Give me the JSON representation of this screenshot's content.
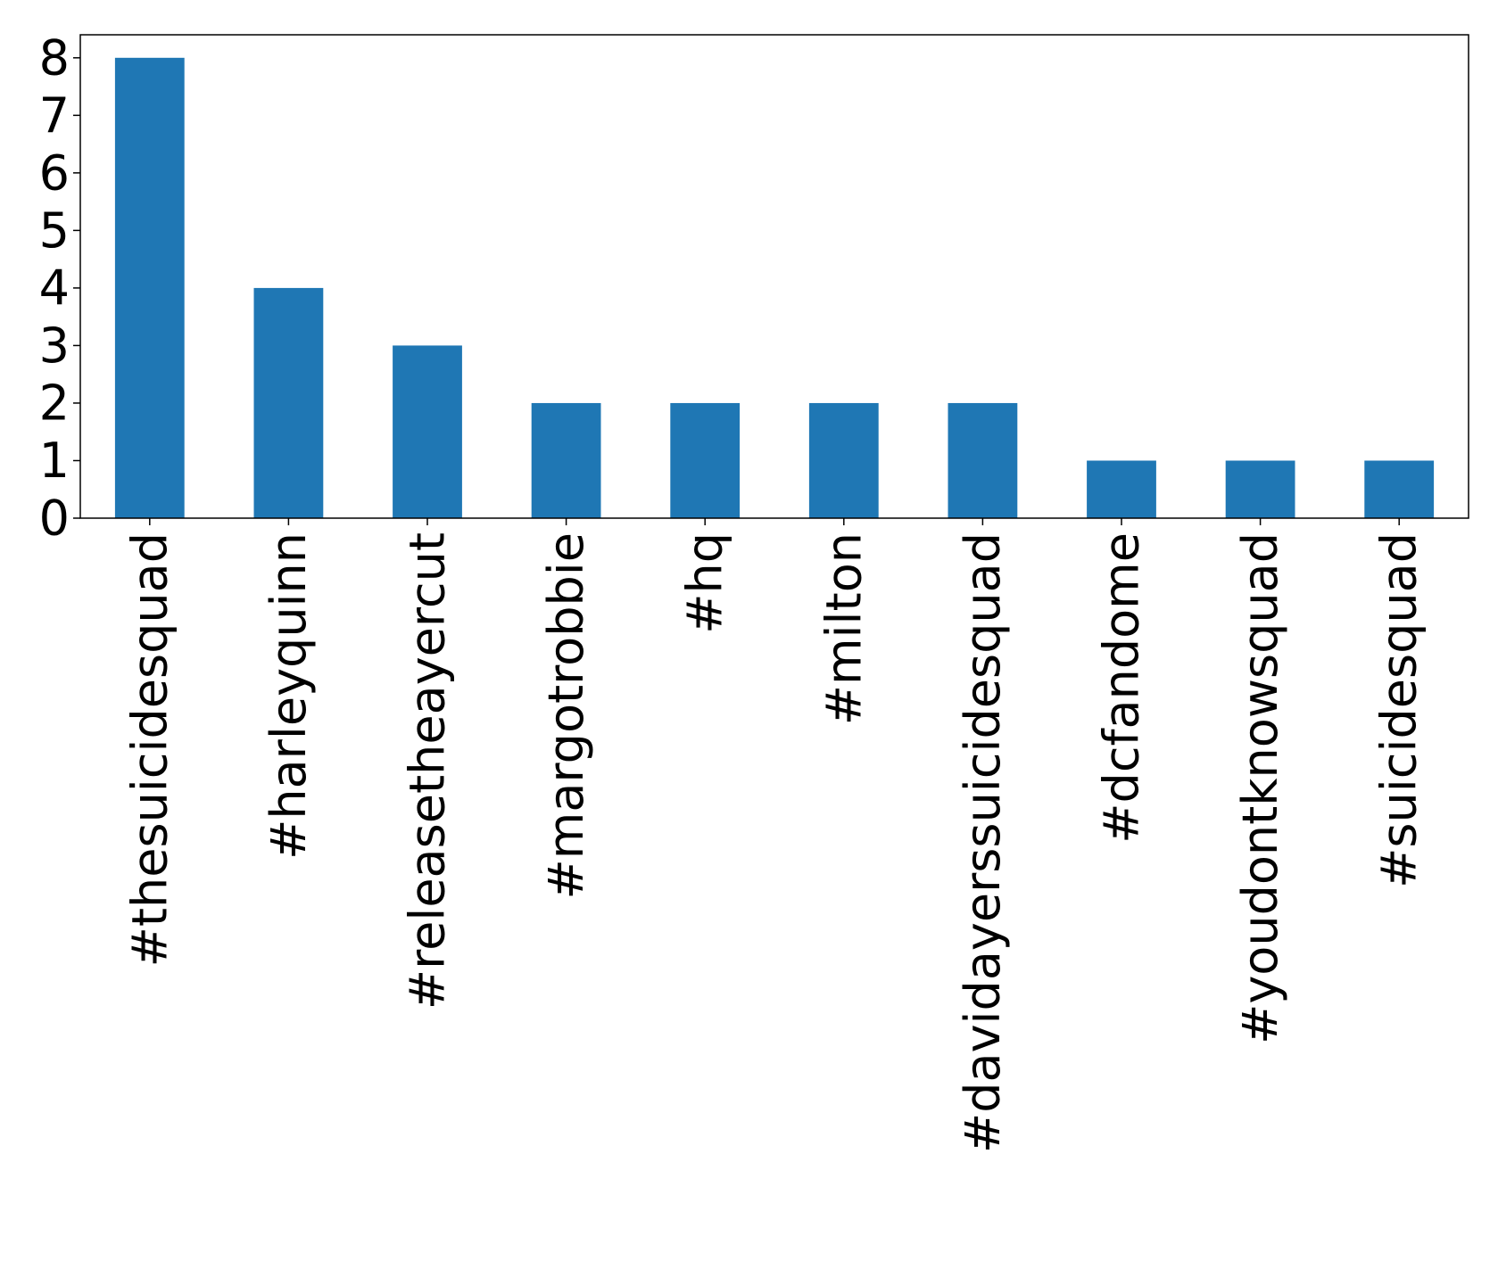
{
  "chart_data": {
    "type": "bar",
    "title": "",
    "xlabel": "",
    "ylabel": "",
    "categories": [
      "#thesuicidesquad",
      "#harleyquinn",
      "#releasetheayercut",
      "#margotrobbie",
      "#hq",
      "#milton",
      "#davidayerssuicidesquad",
      "#dcfandome",
      "#youdontknowsquad",
      "#suicidesquad"
    ],
    "values": [
      8,
      4,
      3,
      2,
      2,
      2,
      2,
      1,
      1,
      1
    ],
    "ylim": [
      0,
      8.4
    ],
    "yticks": [
      0,
      1,
      2,
      3,
      4,
      5,
      6,
      7,
      8
    ],
    "bar_color": "#1f77b4",
    "grid": false,
    "legend": "none"
  }
}
